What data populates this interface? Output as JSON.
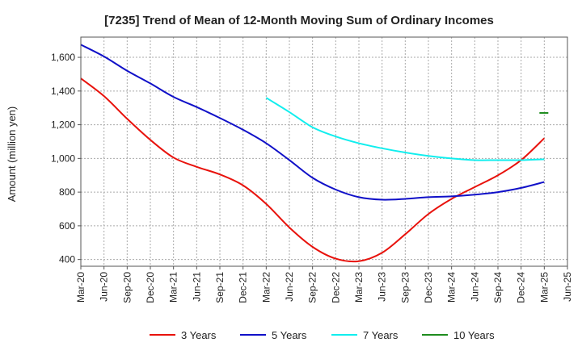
{
  "chart_data": {
    "type": "line",
    "title": "[7235]  Trend of Mean of 12-Month Moving Sum of Ordinary Incomes",
    "xlabel": "",
    "ylabel": "Amount (million yen)",
    "ylim": [
      360,
      1720
    ],
    "yticks": [
      400,
      600,
      800,
      1000,
      1200,
      1400,
      1600
    ],
    "ytick_labels": [
      "400",
      "600",
      "800",
      "1,000",
      "1,200",
      "1,400",
      "1,600"
    ],
    "categories": [
      "Mar-20",
      "Jun-20",
      "Sep-20",
      "Dec-20",
      "Mar-21",
      "Jun-21",
      "Sep-21",
      "Dec-21",
      "Mar-22",
      "Jun-22",
      "Sep-22",
      "Dec-22",
      "Mar-23",
      "Jun-23",
      "Sep-23",
      "Dec-23",
      "Mar-24",
      "Jun-24",
      "Sep-24",
      "Dec-24",
      "Mar-25",
      "Jun-25"
    ],
    "grid": true,
    "legend_position": "bottom",
    "series": [
      {
        "name": "3 Years",
        "color": "#e8120c",
        "values": [
          1475,
          1370,
          1235,
          1110,
          1005,
          950,
          905,
          840,
          730,
          590,
          475,
          405,
          390,
          440,
          550,
          670,
          760,
          830,
          900,
          990,
          1120,
          null
        ]
      },
      {
        "name": "5 Years",
        "color": "#1010c8",
        "values": [
          1675,
          1605,
          1520,
          1445,
          1365,
          1305,
          1240,
          1170,
          1090,
          990,
          885,
          815,
          770,
          755,
          760,
          770,
          775,
          785,
          800,
          825,
          860,
          null
        ]
      },
      {
        "name": "7 Years",
        "color": "#11eeee",
        "values": [
          null,
          null,
          null,
          null,
          null,
          null,
          null,
          null,
          1360,
          1275,
          1185,
          1130,
          1090,
          1060,
          1035,
          1015,
          1000,
          990,
          990,
          990,
          995,
          null
        ]
      },
      {
        "name": "10 Years",
        "color": "#1e8c1e",
        "values": [
          null,
          null,
          null,
          null,
          null,
          null,
          null,
          null,
          null,
          null,
          null,
          null,
          null,
          null,
          null,
          null,
          null,
          null,
          null,
          null,
          1270,
          null
        ]
      }
    ]
  }
}
